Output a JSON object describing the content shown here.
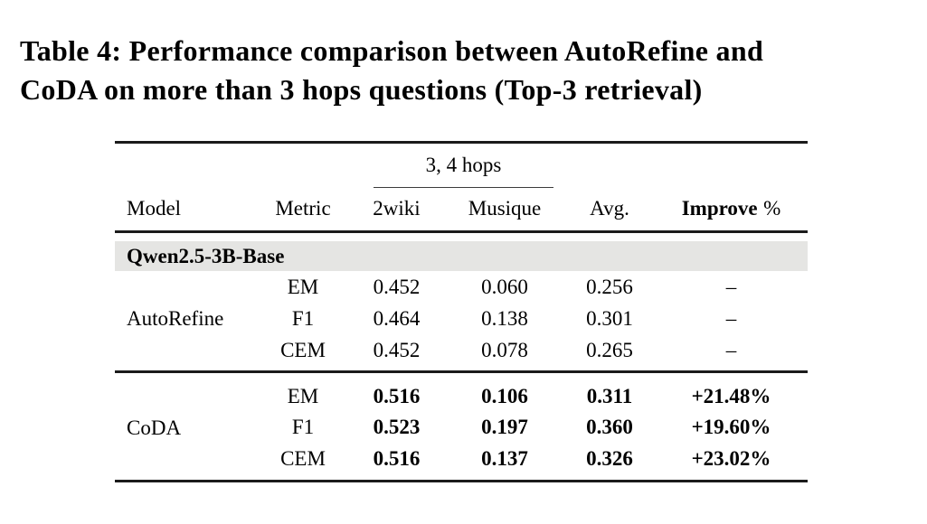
{
  "title": {
    "line1": "Table 4: Performance comparison between AutoRefine and",
    "line2": "CoDA on more than 3 hops questions (Top-3 retrieval)"
  },
  "table": {
    "span_header": "3, 4 hops",
    "headers": {
      "model": "Model",
      "metric": "Metric",
      "dataset1": "2wiki",
      "dataset2": "Musique",
      "avg": "Avg.",
      "improve": "Improve",
      "improve_unit": "%"
    },
    "section_label": "Qwen2.5-3B-Base",
    "highlight_color": "#e5e5e3",
    "groups": [
      {
        "model": "AutoRefine",
        "rows": [
          {
            "metric": "EM",
            "dataset1": "0.452",
            "dataset2": "0.060",
            "avg": "0.256",
            "improve": "–"
          },
          {
            "metric": "F1",
            "dataset1": "0.464",
            "dataset2": "0.138",
            "avg": "0.301",
            "improve": "–"
          },
          {
            "metric": "CEM",
            "dataset1": "0.452",
            "dataset2": "0.078",
            "avg": "0.265",
            "improve": "–"
          }
        ]
      },
      {
        "model": "CoDA",
        "rows": [
          {
            "metric": "EM",
            "dataset1": "0.516",
            "dataset2": "0.106",
            "avg": "0.311",
            "improve": "+21.48%"
          },
          {
            "metric": "F1",
            "dataset1": "0.523",
            "dataset2": "0.197",
            "avg": "0.360",
            "improve": "+19.60%"
          },
          {
            "metric": "CEM",
            "dataset1": "0.516",
            "dataset2": "0.137",
            "avg": "0.326",
            "improve": "+23.02%"
          }
        ]
      }
    ]
  }
}
